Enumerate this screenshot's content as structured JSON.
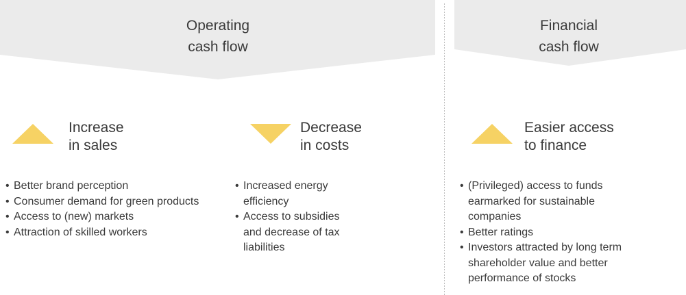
{
  "headers": [
    {
      "lines": [
        "Operating",
        "cash flow"
      ]
    },
    {
      "lines": [
        "Financial",
        "cash flow"
      ]
    }
  ],
  "items": [
    {
      "direction": "up",
      "heading": [
        "Increase",
        "in sales"
      ],
      "bullets": [
        "Better brand perception",
        "Consumer demand for green products",
        "Access to (new) markets",
        "Attraction of skilled workers"
      ]
    },
    {
      "direction": "down",
      "heading": [
        "Decrease",
        "in costs"
      ],
      "bullets": [
        "Increased energy efficiency",
        "Access to subsidies and decrease of tax liabilities"
      ]
    },
    {
      "direction": "up",
      "heading": [
        "Easier access",
        "to finance"
      ],
      "bullets": [
        "(Privileged) access to funds earmarked for sustainable companies",
        "Better ratings",
        "Investors attracted by long term shareholder value and better performance of stocks"
      ]
    }
  ]
}
